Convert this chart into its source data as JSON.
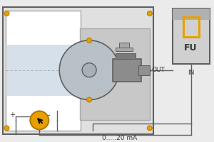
{
  "bg_color": "#ebebeb",
  "white": "#ffffff",
  "gray_light": "#d0d0d0",
  "gray_medium": "#a8a8a8",
  "gray_dark": "#606060",
  "gray_box": "#e0e0e0",
  "gray_inner": "#c8c8c8",
  "gray_fan": "#b8c0c8",
  "gray_motor": "#8c8c8c",
  "blue_light": "#c0d0e0",
  "orange": "#e8a000",
  "orange_edge": "#b07800",
  "label_out": "OUT",
  "label_in": "IN",
  "label_fu": "FU",
  "label_mA": "0.....20 mA",
  "label_plus": "+",
  "label_minus": "-"
}
